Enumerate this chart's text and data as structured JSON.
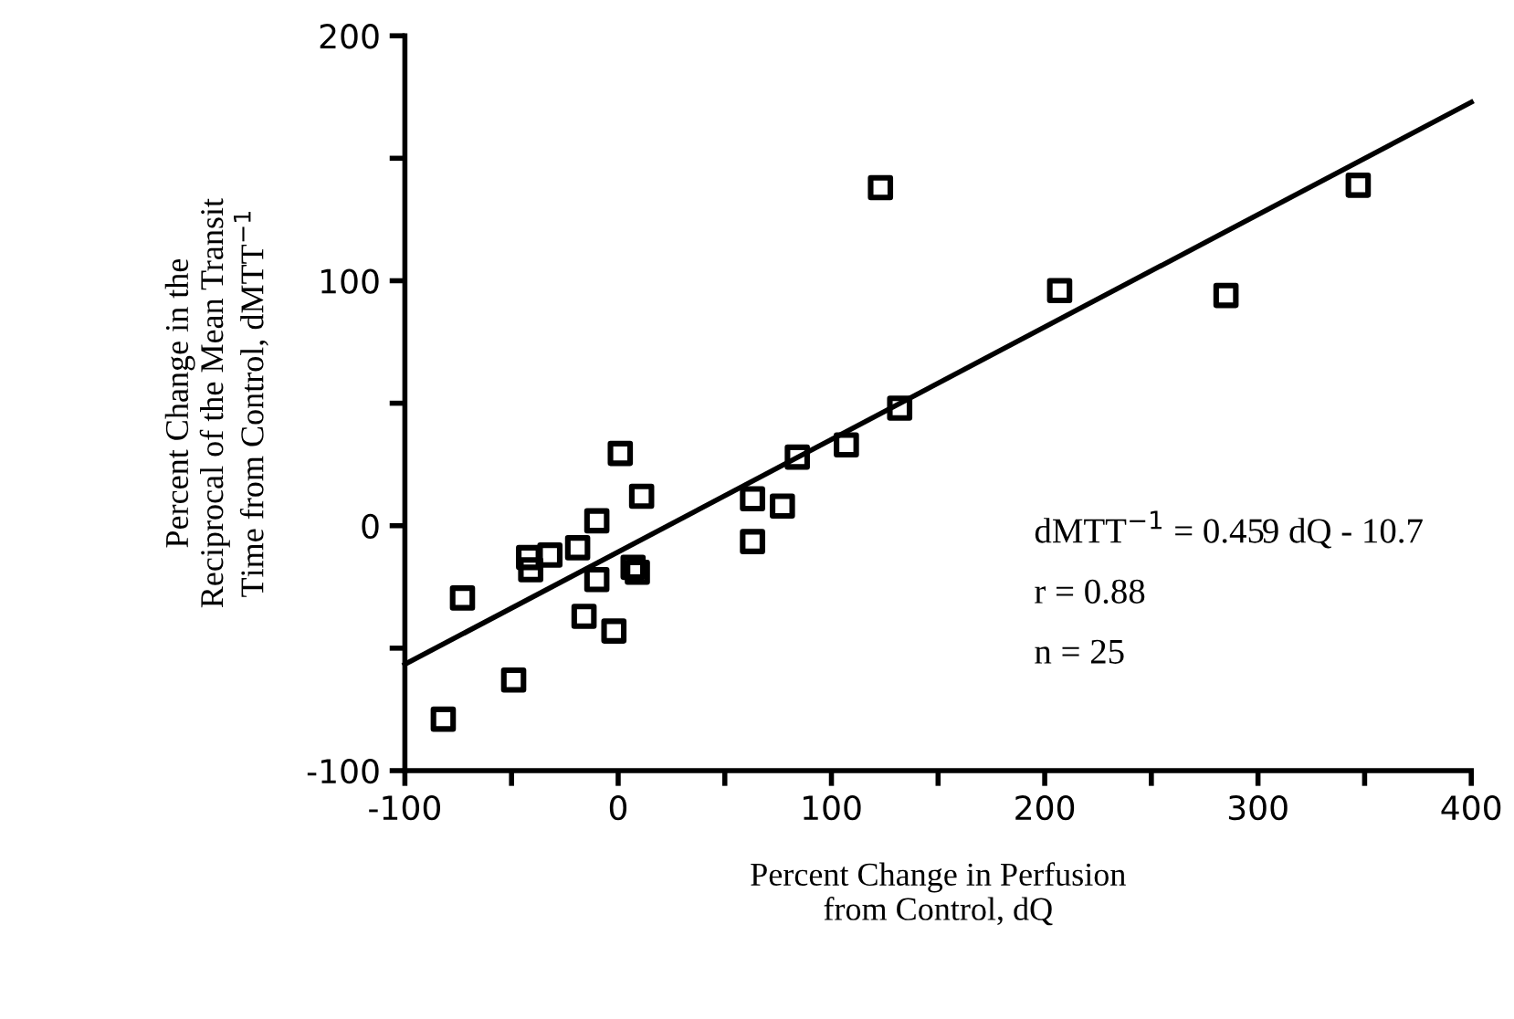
{
  "chart_data": {
    "type": "scatter",
    "xlabel": "Percent Change in Perfusion\nfrom Control, dQ",
    "ylabel": "Percent Change in the\nReciprocal of the Mean Transit\nTime from Control, dMTT$^{−1}$",
    "xlim": [
      -100,
      400
    ],
    "ylim": [
      -100,
      200
    ],
    "xticks": [
      -100,
      {
        "value": -50,
        "label": null
      },
      0,
      {
        "value": 50,
        "label": null
      },
      100,
      {
        "value": 150,
        "label": null
      },
      200,
      {
        "value": 250,
        "label": null
      },
      300,
      {
        "value": 350,
        "label": null
      },
      400
    ],
    "yticks": [
      -100,
      {
        "value": -50,
        "label": null
      },
      0,
      {
        "value": 50,
        "label": null
      },
      100,
      {
        "value": 150,
        "label": null
      },
      200
    ],
    "grid": false,
    "legend": false,
    "series": [
      {
        "marker": "square",
        "color": "#000000",
        "x": [
          -82,
          -73,
          -49,
          -42,
          -41,
          -32,
          -19,
          -16,
          -10,
          -10,
          -2,
          1,
          7,
          9,
          11,
          63,
          63,
          77,
          84,
          107,
          132,
          123,
          207,
          285,
          347
        ],
        "values": [
          -79,
          -29.5,
          -63,
          -13,
          -18,
          -12,
          -9,
          -37,
          2,
          -22,
          -43,
          29.5,
          -17,
          -19,
          12,
          11,
          -6.5,
          8,
          28,
          33,
          48,
          138,
          96,
          94,
          139
        ]
      },
      {
        "type": "line",
        "marker": "none",
        "line_style": "solid",
        "color": "#000000",
        "x": [
          -100,
          400
        ],
        "values": [
          -56.6,
          172.9
        ]
      }
    ],
    "annotations": [
      "dMTT$^{−1}$ = 0.459 dQ - 10.7",
      "r = 0.88",
      "n = 25"
    ]
  }
}
